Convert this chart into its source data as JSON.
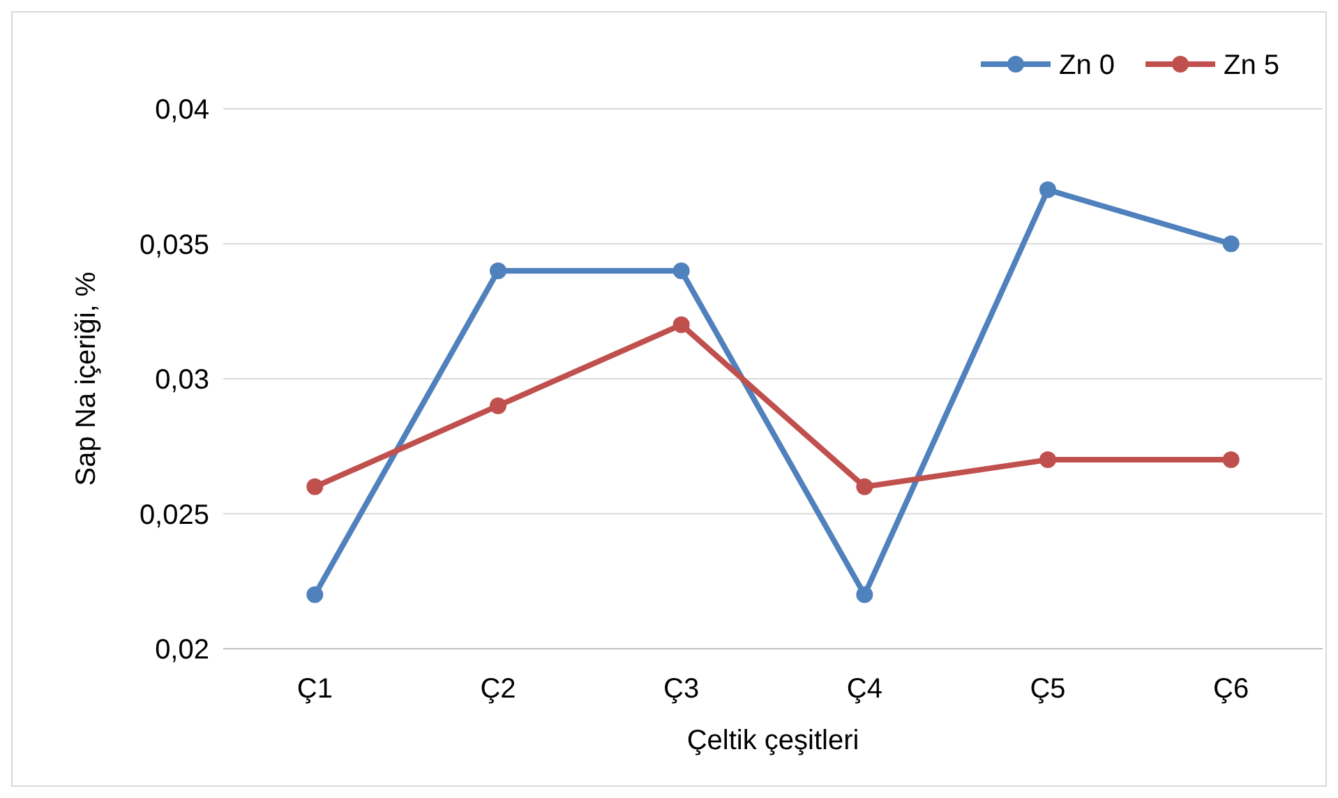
{
  "chart_data": {
    "type": "line",
    "xlabel": "Çeltik çeşitleri",
    "ylabel": "Sap Na içeriği, %",
    "categories": [
      "Ç1",
      "Ç2",
      "Ç3",
      "Ç4",
      "Ç5",
      "Ç6"
    ],
    "series": [
      {
        "name": "Zn 0",
        "color": "#4f81bd",
        "values": [
          0.022,
          0.034,
          0.034,
          0.022,
          0.037,
          0.035
        ]
      },
      {
        "name": "Zn 5",
        "color": "#c0504d",
        "values": [
          0.026,
          0.029,
          0.032,
          0.026,
          0.027,
          0.027
        ]
      }
    ],
    "ylim": [
      0.02,
      0.04
    ],
    "yticks": [
      {
        "value": 0.02,
        "label": "0,02"
      },
      {
        "value": 0.025,
        "label": "0,025"
      },
      {
        "value": 0.03,
        "label": "0,03"
      },
      {
        "value": 0.035,
        "label": "0,035"
      },
      {
        "value": 0.04,
        "label": "0,04"
      }
    ],
    "grid": "y",
    "legend": "top right",
    "marker": "circle",
    "line_style": "solid"
  }
}
